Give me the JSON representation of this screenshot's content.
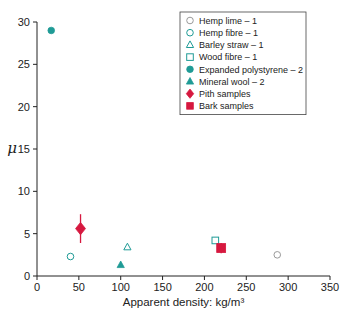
{
  "chart_data": {
    "type": "scatter",
    "x_label": "Apparent density: kg/m³",
    "y_label": "μ",
    "xlim": [
      0,
      350
    ],
    "ylim": [
      0,
      30
    ],
    "xticks": [
      0,
      50,
      100,
      150,
      200,
      250,
      300,
      350
    ],
    "yticks": [
      0,
      5,
      10,
      15,
      20,
      25,
      30
    ],
    "grid": false,
    "legend": "top-right",
    "series": [
      {
        "name": "Hemp lime – 1",
        "color": "#9a9a9a",
        "marker": "circle-open",
        "x": [
          287
        ],
        "values": [
          2.5
        ]
      },
      {
        "name": "Hemp fibre – 1",
        "color": "#1f9b96",
        "marker": "circle-open",
        "x": [
          40
        ],
        "values": [
          2.3
        ]
      },
      {
        "name": "Barley straw – 1",
        "color": "#1f9b96",
        "marker": "triangle-open",
        "x": [
          108
        ],
        "values": [
          3.4
        ]
      },
      {
        "name": "Wood fibre – 1",
        "color": "#1f9b96",
        "marker": "square-open",
        "x": [
          213
        ],
        "values": [
          4.2
        ]
      },
      {
        "name": "Expanded polystyrene – 2",
        "color": "#1f9b96",
        "marker": "circle",
        "x": [
          17
        ],
        "values": [
          29
        ]
      },
      {
        "name": "Mineral wool – 2",
        "color": "#1f9b96",
        "marker": "triangle",
        "x": [
          100
        ],
        "values": [
          1.3
        ]
      },
      {
        "name": "Pith samples",
        "color": "#d6183f",
        "marker": "diamond",
        "x": [
          52
        ],
        "values": [
          5.6
        ],
        "error": [
          1.7
        ]
      },
      {
        "name": "Bark samples",
        "color": "#d6183f",
        "marker": "square",
        "x": [
          220
        ],
        "values": [
          3.3
        ],
        "error": [
          0.6
        ]
      }
    ]
  }
}
